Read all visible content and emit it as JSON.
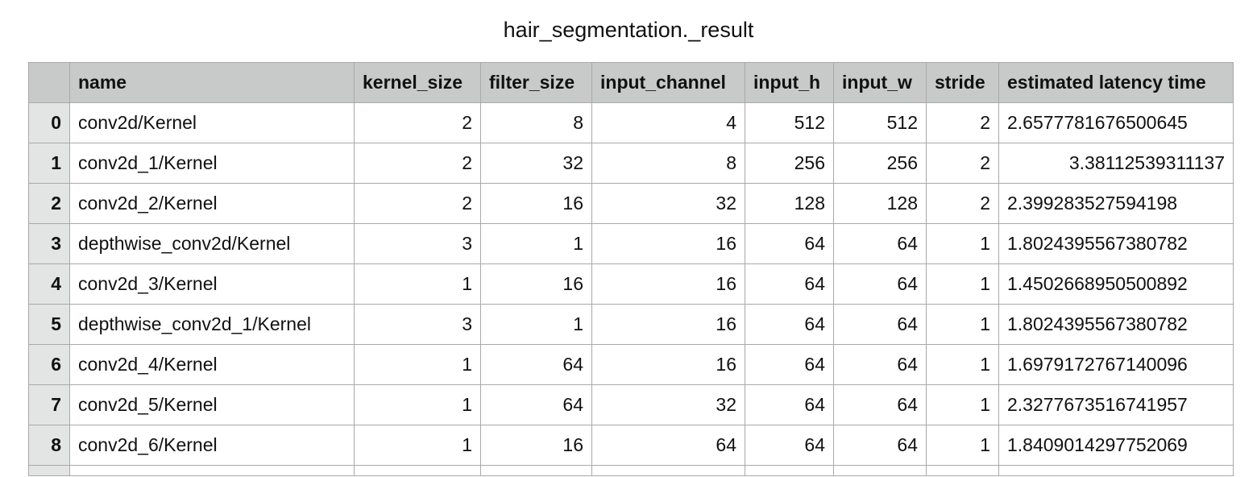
{
  "title": "hair_segmentation._result",
  "columns": [
    "",
    "name",
    "kernel_size",
    "filter_size",
    "input_channel",
    "input_h",
    "input_w",
    "stride",
    "estimated latency time"
  ],
  "rows": [
    {
      "index": "0",
      "name": "conv2d/Kernel",
      "kernel_size": "2",
      "filter_size": "8",
      "input_channel": "4",
      "input_h": "512",
      "input_w": "512",
      "stride": "2",
      "latency": "2.6577781676500645"
    },
    {
      "index": "1",
      "name": "conv2d_1/Kernel",
      "kernel_size": "2",
      "filter_size": "32",
      "input_channel": "8",
      "input_h": "256",
      "input_w": "256",
      "stride": "2",
      "latency": "3.38112539311137"
    },
    {
      "index": "2",
      "name": "conv2d_2/Kernel",
      "kernel_size": "2",
      "filter_size": "16",
      "input_channel": "32",
      "input_h": "128",
      "input_w": "128",
      "stride": "2",
      "latency": "2.399283527594198"
    },
    {
      "index": "3",
      "name": "depthwise_conv2d/Kernel",
      "kernel_size": "3",
      "filter_size": "1",
      "input_channel": "16",
      "input_h": "64",
      "input_w": "64",
      "stride": "1",
      "latency": "1.8024395567380782"
    },
    {
      "index": "4",
      "name": "conv2d_3/Kernel",
      "kernel_size": "1",
      "filter_size": "16",
      "input_channel": "16",
      "input_h": "64",
      "input_w": "64",
      "stride": "1",
      "latency": "1.4502668950500892"
    },
    {
      "index": "5",
      "name": "depthwise_conv2d_1/Kernel",
      "kernel_size": "3",
      "filter_size": "1",
      "input_channel": "16",
      "input_h": "64",
      "input_w": "64",
      "stride": "1",
      "latency": "1.8024395567380782"
    },
    {
      "index": "6",
      "name": "conv2d_4/Kernel",
      "kernel_size": "1",
      "filter_size": "64",
      "input_channel": "16",
      "input_h": "64",
      "input_w": "64",
      "stride": "1",
      "latency": "1.6979172767140096"
    },
    {
      "index": "7",
      "name": "conv2d_5/Kernel",
      "kernel_size": "1",
      "filter_size": "64",
      "input_channel": "32",
      "input_h": "64",
      "input_w": "64",
      "stride": "1",
      "latency": "2.3277673516741957"
    },
    {
      "index": "8",
      "name": "conv2d_6/Kernel",
      "kernel_size": "1",
      "filter_size": "16",
      "input_channel": "64",
      "input_h": "64",
      "input_w": "64",
      "stride": "1",
      "latency": "1.8409014297752069"
    }
  ]
}
